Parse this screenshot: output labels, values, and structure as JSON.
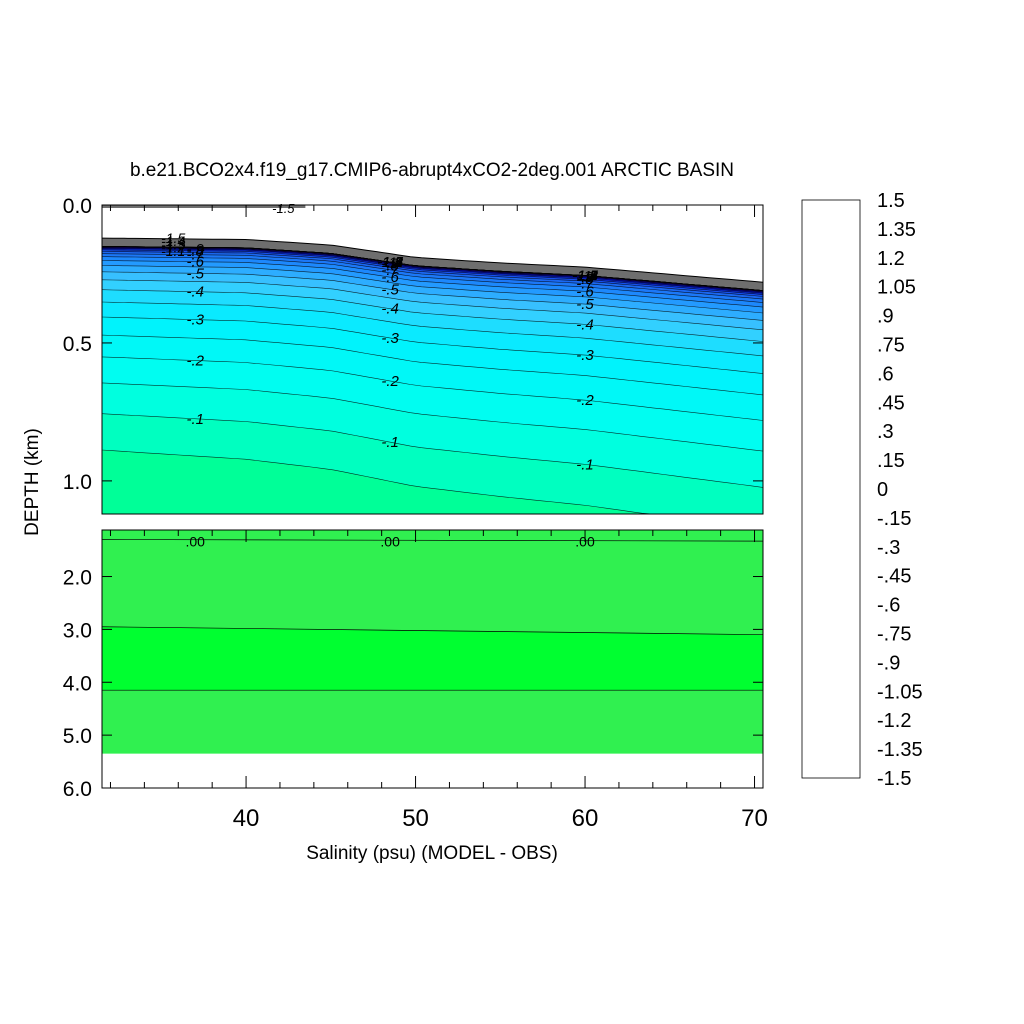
{
  "chart_data": {
    "type": "contour",
    "title": "b.e21.BCO2x4.f19_g17.CMIP6-abrupt4xCO2-2deg.001 ARCTIC BASIN",
    "xlabel": "Salinity (psu) (MODEL - OBS)",
    "ylabel": "DEPTH (km)",
    "xlim": [
      31.5,
      70.5
    ],
    "x_ticks": [
      "40",
      "50",
      "60",
      "70"
    ],
    "upper_panel": {
      "ylim": [
        0.0,
        1.12
      ],
      "y_ticks": [
        "0.0",
        "0.5",
        "1.0"
      ],
      "surface_values": [
        {
          "x": 31.5,
          "depth": 0.12
        },
        {
          "x": 40,
          "depth": 0.125
        },
        {
          "x": 45,
          "depth": 0.145
        },
        {
          "x": 50,
          "depth": 0.19
        },
        {
          "x": 55,
          "depth": 0.21
        },
        {
          "x": 60,
          "depth": 0.225
        },
        {
          "x": 70.5,
          "depth": 0.28
        }
      ],
      "contour_labels": {
        "col1": [
          "-.9",
          "-.8",
          "-.7",
          "-.6",
          "-.5",
          "-.4",
          "-.3",
          "-.2",
          "-.1"
        ],
        "col2": [
          "-1.5",
          "-1.4",
          "-1.3",
          "-1.2",
          "-1.1",
          "-1",
          "-.9",
          "-.8",
          "-.7",
          "-.6",
          "-.5",
          "-.4",
          "-.3",
          "-.2",
          "-.1"
        ],
        "col3": [
          "-1.5",
          "-1.4",
          "-1.3",
          "-1.2",
          "-1.1",
          "-1",
          "-.9",
          "-.8",
          "-.7",
          "-.6",
          "-.5",
          "-.4",
          "-.3",
          "-.2",
          "-.1"
        ],
        "top_left": [
          "-1.5",
          "-1.4",
          "-1.3",
          "-1.2",
          "-1.1"
        ],
        "surface_strip": "-1.5"
      }
    },
    "lower_panel": {
      "ylim": [
        1.12,
        6.0
      ],
      "y_ticks": [
        "2.0",
        "3.0",
        "4.0",
        "5.0",
        "6.0"
      ],
      "contour_labels": [
        ".00",
        ".00",
        ".00"
      ],
      "bottom_depth": 5.35
    },
    "colorbar": {
      "min": -1.5,
      "max": 1.5,
      "step": 0.05,
      "tick_labels": [
        "1.5",
        "1.35",
        "1.2",
        "1.05",
        ".9",
        ".75",
        ".6",
        ".45",
        ".3",
        ".15",
        "0",
        "-.15",
        "-.3",
        "-.45",
        "-.6",
        "-.75",
        "-.9",
        "-1.05",
        "-1.2",
        "-1.35",
        "-1.5"
      ]
    }
  }
}
